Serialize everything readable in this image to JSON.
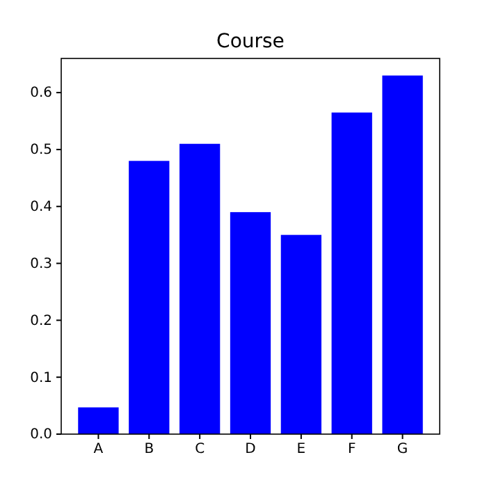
{
  "chart_data": {
    "type": "bar",
    "title": "Course",
    "categories": [
      "A",
      "B",
      "C",
      "D",
      "E",
      "F",
      "G"
    ],
    "values": [
      0.047,
      0.48,
      0.51,
      0.39,
      0.35,
      0.565,
      0.63
    ],
    "color": "#0000ff",
    "ylim": [
      0,
      0.66
    ],
    "yticks": [
      {
        "value": 0,
        "label": "0.0"
      },
      0.1,
      0.2,
      0.3,
      0.4,
      0.5,
      0.6
    ],
    "grid": false
  }
}
